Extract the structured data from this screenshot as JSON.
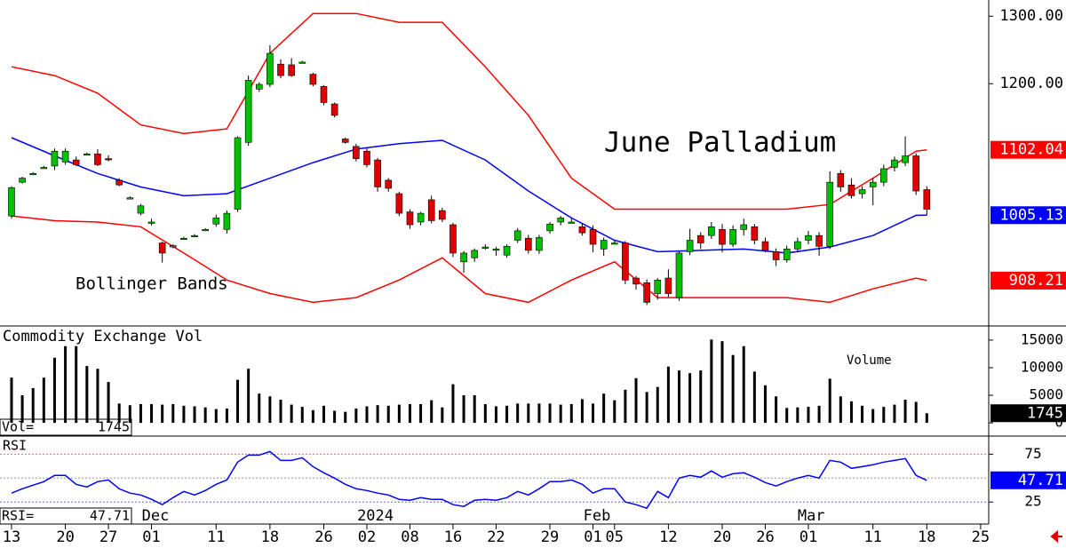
{
  "chart_data": [
    {
      "type": "candlestick",
      "title": "June Palladium",
      "annotations": [
        "Bollinger Bands"
      ],
      "up_color": "#00c000",
      "down_color": "#e00000",
      "xlim": [
        -1.07,
        90.75
      ],
      "xticks": [
        {
          "value": 0,
          "label": "13"
        },
        {
          "value": 5,
          "label": "20"
        },
        {
          "value": 9,
          "label": "27"
        },
        {
          "value": 13,
          "label": "01"
        },
        {
          "value": 19,
          "label": "11"
        },
        {
          "value": 24,
          "label": "18"
        },
        {
          "value": 29,
          "label": "26"
        },
        {
          "value": 33,
          "label": "02"
        },
        {
          "value": 37,
          "label": "08"
        },
        {
          "value": 41,
          "label": "16"
        },
        {
          "value": 45,
          "label": "22"
        },
        {
          "value": 50,
          "label": "29"
        },
        {
          "value": 54,
          "label": "01"
        },
        {
          "value": 56,
          "label": "05"
        },
        {
          "value": 61,
          "label": "12"
        },
        {
          "value": 66,
          "label": "20"
        },
        {
          "value": 70,
          "label": "26"
        },
        {
          "value": 74,
          "label": "01"
        },
        {
          "value": 80,
          "label": "11"
        },
        {
          "value": 85,
          "label": "18"
        },
        {
          "value": 90,
          "label": "25"
        }
      ],
      "month_labels": [
        {
          "value": 12.1,
          "label": "Dec"
        },
        {
          "value": 32.1,
          "label": "2024"
        },
        {
          "value": 53.1,
          "label": "Feb"
        },
        {
          "value": 73,
          "label": "Mar"
        }
      ],
      "ylim": [
        841,
        1324
      ],
      "yticks": [
        {
          "value": 1300,
          "label": "1300.00"
        },
        {
          "value": 1200,
          "label": "1200.00"
        }
      ],
      "ohlc": [
        [
          1004,
          1048,
          1000,
          1046
        ],
        [
          1054,
          1062,
          1052,
          1060
        ],
        [
          1067,
          1069,
          1065,
          1067
        ],
        [
          1076,
          1078,
          1074,
          1076
        ],
        [
          1078,
          1104,
          1072,
          1100
        ],
        [
          1084,
          1104,
          1080,
          1100
        ],
        [
          1087,
          1092,
          1078,
          1080
        ],
        [
          1096,
          1098,
          1094,
          1096
        ],
        [
          1096,
          1103,
          1078,
          1080
        ],
        [
          1089,
          1094,
          1085,
          1087
        ],
        [
          1057,
          1060,
          1048,
          1050
        ],
        [
          1031,
          1033,
          1029,
          1031
        ],
        [
          1008,
          1022,
          1005,
          1019
        ],
        [
          995,
          1000,
          990,
          995
        ],
        [
          964,
          966,
          935,
          949
        ],
        [
          960,
          962,
          956,
          960
        ],
        [
          971,
          973,
          969,
          971
        ],
        [
          975,
          977,
          973,
          975
        ],
        [
          984,
          986,
          982,
          984
        ],
        [
          992,
          1006,
          988,
          1001
        ],
        [
          984,
          1012,
          978,
          1008
        ],
        [
          1014,
          1122,
          1010,
          1120
        ],
        [
          1113,
          1212,
          1108,
          1205
        ],
        [
          1192,
          1202,
          1188,
          1199
        ],
        [
          1199,
          1257,
          1195,
          1245
        ],
        [
          1229,
          1236,
          1208,
          1212
        ],
        [
          1228,
          1238,
          1210,
          1212
        ],
        [
          1232,
          1234,
          1230,
          1232
        ],
        [
          1214,
          1216,
          1196,
          1199
        ],
        [
          1196,
          1198,
          1168,
          1172
        ],
        [
          1170,
          1172,
          1150,
          1153
        ],
        [
          1118,
          1120,
          1111,
          1113
        ],
        [
          1107,
          1111,
          1085,
          1089
        ],
        [
          1100,
          1104,
          1076,
          1080
        ],
        [
          1087,
          1090,
          1040,
          1047
        ],
        [
          1057,
          1060,
          1040,
          1045
        ],
        [
          1037,
          1040,
          1004,
          1008
        ],
        [
          1010,
          1014,
          985,
          991
        ],
        [
          995,
          1010,
          990,
          1008
        ],
        [
          1028,
          1034,
          993,
          997
        ],
        [
          1012,
          1016,
          995,
          999
        ],
        [
          991,
          994,
          943,
          949
        ],
        [
          936,
          952,
          920,
          949
        ],
        [
          942,
          956,
          936,
          953
        ],
        [
          958,
          962,
          954,
          958
        ],
        [
          955,
          958,
          945,
          955
        ],
        [
          946,
          962,
          942,
          959
        ],
        [
          968,
          986,
          964,
          982
        ],
        [
          971,
          976,
          948,
          953
        ],
        [
          953,
          976,
          948,
          972
        ],
        [
          982,
          995,
          978,
          992
        ],
        [
          995,
          1004,
          990,
          1001
        ],
        [
          995,
          1000,
          993,
          995
        ],
        [
          988,
          993,
          975,
          979
        ],
        [
          984,
          990,
          950,
          962
        ],
        [
          955,
          972,
          945,
          968
        ],
        [
          964,
          968,
          962,
          964
        ],
        [
          964,
          967,
          903,
          909
        ],
        [
          912,
          915,
          895,
          903
        ],
        [
          905,
          910,
          872,
          876
        ],
        [
          889,
          912,
          880,
          909
        ],
        [
          912,
          925,
          884,
          889
        ],
        [
          883,
          952,
          878,
          949
        ],
        [
          951,
          985,
          946,
          968
        ],
        [
          975,
          980,
          955,
          964
        ],
        [
          975,
          995,
          970,
          988
        ],
        [
          984,
          992,
          950,
          962
        ],
        [
          962,
          990,
          958,
          984
        ],
        [
          984,
          1000,
          975,
          991
        ],
        [
          988,
          992,
          962,
          968
        ],
        [
          966,
          972,
          950,
          953
        ],
        [
          951,
          956,
          930,
          939
        ],
        [
          939,
          960,
          935,
          955
        ],
        [
          955,
          972,
          950,
          966
        ],
        [
          968,
          982,
          962,
          975
        ],
        [
          975,
          980,
          945,
          959
        ],
        [
          959,
          1070,
          955,
          1054
        ],
        [
          1067,
          1072,
          1040,
          1047
        ],
        [
          1050,
          1060,
          1030,
          1034
        ],
        [
          1037,
          1048,
          1030,
          1043
        ],
        [
          1047,
          1060,
          1020,
          1054
        ],
        [
          1054,
          1080,
          1048,
          1074
        ],
        [
          1076,
          1092,
          1070,
          1087
        ],
        [
          1083,
          1122,
          1078,
          1093
        ],
        [
          1093,
          1097,
          1035,
          1041
        ],
        [
          1043,
          1048,
          1005,
          1014
        ]
      ],
      "band_x": [
        0,
        4,
        8,
        12,
        16,
        20,
        24,
        28,
        32,
        36,
        40,
        44,
        48,
        52,
        56,
        60,
        64,
        68,
        72,
        76,
        80,
        84,
        85
      ],
      "bands": [
        {
          "color": "#ff0000",
          "values": [
            1225,
            1212,
            1186,
            1139,
            1126,
            1133,
            1245,
            1304,
            1304,
            1291,
            1291,
            1225,
            1153,
            1060,
            1014,
            1014,
            1014,
            1014,
            1014,
            1021,
            1060,
            1100,
            1102.04
          ]
        },
        {
          "color": "#0000ff",
          "values": [
            1120,
            1093,
            1067,
            1047,
            1034,
            1037,
            1060,
            1083,
            1103,
            1111,
            1116,
            1087,
            1041,
            1001,
            968,
            951,
            953,
            955,
            949,
            958,
            975,
            1005,
            1005.13
          ]
        },
        {
          "color": "#ff0000",
          "values": [
            1004,
            997,
            995,
            988,
            949,
            909,
            889,
            876,
            883,
            909,
            942,
            889,
            876,
            909,
            936,
            883,
            883,
            883,
            883,
            876,
            896,
            912,
            908.21
          ]
        }
      ]
    },
    {
      "type": "bar",
      "title": "Commodity Exchange Vol",
      "label": "Volume",
      "readout_label": "Vol=",
      "color": "#000000",
      "ylim": [
        -2400,
        17400
      ],
      "yticks": [
        15000,
        10000,
        5000,
        0
      ],
      "values": [
        8200,
        5000,
        6300,
        8200,
        11800,
        13900,
        13900,
        10300,
        9800,
        7400,
        3500,
        3200,
        3400,
        3400,
        3300,
        3400,
        3100,
        3000,
        2800,
        2500,
        2600,
        7800,
        9800,
        5300,
        4800,
        4200,
        3300,
        2900,
        2300,
        3100,
        2200,
        2000,
        2600,
        3000,
        3200,
        3100,
        3300,
        3400,
        3400,
        4100,
        2800,
        7000,
        5000,
        5000,
        3400,
        3000,
        3100,
        3500,
        3500,
        3500,
        3500,
        3300,
        3400,
        4300,
        3500,
        5300,
        4100,
        6000,
        8100,
        5600,
        6500,
        10200,
        9500,
        9000,
        9500,
        15100,
        14800,
        12300,
        13900,
        9300,
        6800,
        4800,
        2700,
        2800,
        2900,
        3100,
        8000,
        4800,
        3900,
        3100,
        2500,
        2900,
        3300,
        4200,
        3800,
        1745
      ]
    },
    {
      "type": "line",
      "title": "RSI",
      "readout_label": "RSI=",
      "color": "#0000ff",
      "ylim": [
        2,
        93
      ],
      "yticks": [
        75,
        25
      ],
      "reference_lines": [
        75,
        50,
        25
      ],
      "reference_colors": [
        "#ff6060",
        "#999999",
        "#6060ff"
      ],
      "values": [
        34.3,
        38.9,
        42.6,
        46.3,
        52.8,
        52.8,
        43.5,
        40.7,
        46.3,
        48.1,
        38.9,
        34.3,
        32.4,
        27.8,
        22.2,
        29.6,
        36.1,
        32.4,
        37.0,
        43.5,
        48.1,
        66.7,
        74.1,
        74.1,
        77.8,
        68.5,
        68.5,
        71.3,
        62.0,
        55.6,
        50.0,
        43.5,
        38.9,
        37.0,
        34.3,
        32.4,
        27.8,
        26.9,
        29.6,
        27.8,
        27.8,
        22.2,
        20.4,
        26.9,
        27.8,
        26.9,
        29.6,
        36.1,
        32.4,
        38.9,
        46.3,
        46.3,
        48.1,
        43.5,
        34.3,
        38.9,
        38.9,
        25.0,
        22.2,
        18.5,
        36.1,
        29.6,
        50.0,
        52.8,
        50.9,
        57.4,
        50.9,
        54.6,
        55.6,
        50.9,
        45.4,
        41.7,
        46.3,
        50.0,
        52.8,
        50.0,
        68.5,
        66.7,
        60.2,
        62.0,
        63.9,
        66.7,
        68.5,
        70.4,
        52.8,
        47.71
      ]
    }
  ]
}
